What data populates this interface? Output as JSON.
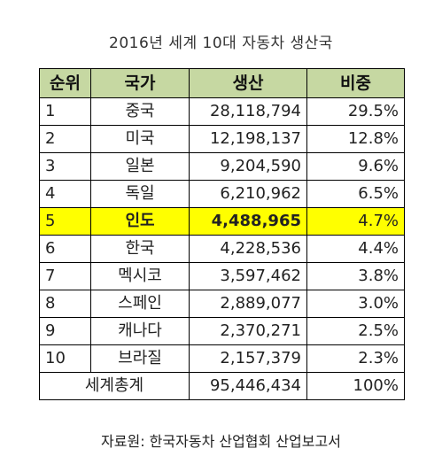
{
  "title": "2016년 세계 10대 자동차 생산국",
  "colors": {
    "header_bg": "#c6d8a2",
    "highlight_bg": "#ffff00",
    "border": "#000000"
  },
  "table": {
    "headers": [
      "순위",
      "국가",
      "생산",
      "비중"
    ],
    "rows": [
      {
        "rank": "1",
        "country": "중국",
        "production": "28,118,794",
        "share": "29.5%"
      },
      {
        "rank": "2",
        "country": "미국",
        "production": "12,198,137",
        "share": "12.8%"
      },
      {
        "rank": "3",
        "country": "일본",
        "production": "9,204,590",
        "share": "9.6%"
      },
      {
        "rank": "4",
        "country": "독일",
        "production": "6,210,962",
        "share": "6.5%"
      },
      {
        "rank": "5",
        "country": "인도",
        "production": "4,488,965",
        "share": "4.7%"
      },
      {
        "rank": "6",
        "country": "한국",
        "production": "4,228,536",
        "share": "4.4%"
      },
      {
        "rank": "7",
        "country": "멕시코",
        "production": "3,597,462",
        "share": "3.8%"
      },
      {
        "rank": "8",
        "country": "스페인",
        "production": "2,889,077",
        "share": "3.0%"
      },
      {
        "rank": "9",
        "country": "캐나다",
        "production": "2,370,271",
        "share": "2.5%"
      },
      {
        "rank": "10",
        "country": "브라질",
        "production": "2,157,379",
        "share": "2.3%"
      }
    ],
    "highlighted_rank": "5",
    "total": {
      "label": "세계총계",
      "production": "95,446,434",
      "share": "100%"
    }
  },
  "source": "자료원: 한국자동차 산업협회 산업보고서"
}
